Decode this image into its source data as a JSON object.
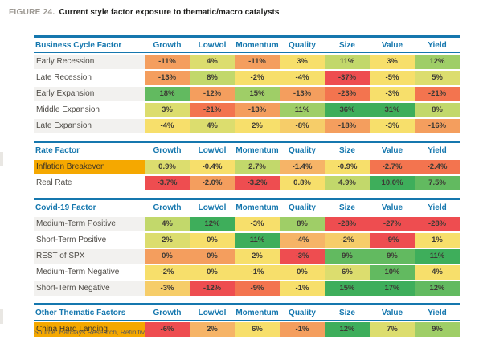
{
  "figure": {
    "label": "FIGURE 24.",
    "title": "Current style factor exposure to thematic/macro catalysts",
    "source": "Source: Barclays Research, Refinitiv"
  },
  "columns": [
    "Growth",
    "LowVol",
    "Momentum",
    "Quality",
    "Size",
    "Value",
    "Yield"
  ],
  "colors": {
    "accent_blue": "#1577AE",
    "highlight_gold": "#F5A800",
    "row_stripe": "#F2F1EF",
    "label_text": "#4D4A45",
    "cell_text": "#3D3A35",
    "figure_label_gray": "#9C9892",
    "source_text": "#5F5B55"
  },
  "palette": {
    "r": "#EE4D50",
    "or": "#F3744F",
    "o": "#F49E5E",
    "lo": "#F6B467",
    "yo": "#F6CD69",
    "y": "#F7DF6B",
    "yg": "#DCDD6E",
    "gy": "#C2D86B",
    "lg": "#9FCE67",
    "g": "#62BA60",
    "dg": "#3EAE5B"
  },
  "sections": [
    {
      "name": "Business Cycle Factor",
      "rows": [
        {
          "label": "Early Recession",
          "highlight": false,
          "values": [
            "-11%",
            "4%",
            "-11%",
            "3%",
            "11%",
            "3%",
            "12%"
          ],
          "levels": [
            "o",
            "yg",
            "o",
            "y",
            "gy",
            "y",
            "lg"
          ]
        },
        {
          "label": "Late Recession",
          "highlight": false,
          "values": [
            "-13%",
            "8%",
            "-2%",
            "-4%",
            "-37%",
            "-5%",
            "5%"
          ],
          "levels": [
            "o",
            "gy",
            "y",
            "y",
            "r",
            "y",
            "yg"
          ]
        },
        {
          "label": "Early Expansion",
          "highlight": false,
          "values": [
            "18%",
            "-12%",
            "15%",
            "-13%",
            "-23%",
            "-3%",
            "-21%"
          ],
          "levels": [
            "g",
            "o",
            "lg",
            "o",
            "or",
            "y",
            "or"
          ]
        },
        {
          "label": "Middle Expansion",
          "highlight": false,
          "values": [
            "3%",
            "-21%",
            "-13%",
            "11%",
            "36%",
            "31%",
            "8%"
          ],
          "levels": [
            "yg",
            "or",
            "o",
            "lg",
            "dg",
            "dg",
            "gy"
          ]
        },
        {
          "label": "Late Expansion",
          "highlight": false,
          "values": [
            "-4%",
            "4%",
            "2%",
            "-8%",
            "-18%",
            "-3%",
            "-16%"
          ],
          "levels": [
            "y",
            "yg",
            "y",
            "yo",
            "o",
            "y",
            "o"
          ]
        }
      ]
    },
    {
      "name": "Rate Factor",
      "rows": [
        {
          "label": "Inflation Breakeven",
          "highlight": true,
          "values": [
            "0.9%",
            "-0.4%",
            "2.7%",
            "-1.4%",
            "-0.9%",
            "-2.7%",
            "-2.4%"
          ],
          "levels": [
            "yg",
            "y",
            "gy",
            "lo",
            "y",
            "or",
            "or"
          ]
        },
        {
          "label": "Real Rate",
          "highlight": false,
          "values": [
            "-3.7%",
            "-2.0%",
            "-3.2%",
            "0.8%",
            "4.9%",
            "10.0%",
            "7.5%"
          ],
          "levels": [
            "r",
            "o",
            "r",
            "y",
            "gy",
            "dg",
            "g"
          ]
        }
      ]
    },
    {
      "name": "Covid-19 Factor",
      "rows": [
        {
          "label": "Medium-Term Positive",
          "highlight": false,
          "values": [
            "4%",
            "12%",
            "-3%",
            "8%",
            "-28%",
            "-27%",
            "-28%"
          ],
          "levels": [
            "gy",
            "dg",
            "y",
            "lg",
            "r",
            "r",
            "r"
          ]
        },
        {
          "label": "Short-Term Positive",
          "highlight": false,
          "values": [
            "2%",
            "0%",
            "11%",
            "-4%",
            "-2%",
            "-9%",
            "1%"
          ],
          "levels": [
            "yg",
            "y",
            "dg",
            "lo",
            "yo",
            "r",
            "y"
          ]
        },
        {
          "label": "REST of SPX",
          "highlight": false,
          "values": [
            "0%",
            "0%",
            "2%",
            "-3%",
            "9%",
            "9%",
            "11%"
          ],
          "levels": [
            "o",
            "o",
            "y",
            "r",
            "g",
            "g",
            "dg"
          ]
        },
        {
          "label": "Medium-Term Negative",
          "highlight": false,
          "values": [
            "-2%",
            "0%",
            "-1%",
            "0%",
            "6%",
            "10%",
            "4%"
          ],
          "levels": [
            "y",
            "y",
            "y",
            "y",
            "yg",
            "g",
            "y"
          ]
        },
        {
          "label": "Short-Term Negative",
          "highlight": false,
          "values": [
            "-3%",
            "-12%",
            "-9%",
            "-1%",
            "15%",
            "17%",
            "12%"
          ],
          "levels": [
            "yo",
            "r",
            "or",
            "y",
            "dg",
            "dg",
            "g"
          ]
        }
      ]
    },
    {
      "name": "Other Thematic Factors",
      "rows": [
        {
          "label": "China Hard Landing",
          "highlight": true,
          "values": [
            "-6%",
            "2%",
            "6%",
            "-1%",
            "12%",
            "7%",
            "9%"
          ],
          "levels": [
            "r",
            "lo",
            "y",
            "o",
            "dg",
            "yg",
            "lg"
          ]
        }
      ]
    }
  ],
  "chart_data": {
    "type": "heatmap",
    "title": "Current style factor exposure to thematic/macro catalysts",
    "units": "percent",
    "columns": [
      "Growth",
      "LowVol",
      "Momentum",
      "Quality",
      "Size",
      "Value",
      "Yield"
    ],
    "color_scale": "red = most negative, yellow = mid, green = most positive (scaled within each row)",
    "groups": [
      {
        "group": "Business Cycle Factor",
        "rows": [
          {
            "label": "Early Recession",
            "values": [
              -11,
              4,
              -11,
              3,
              11,
              3,
              12
            ]
          },
          {
            "label": "Late Recession",
            "values": [
              -13,
              8,
              -2,
              -4,
              -37,
              -5,
              5
            ]
          },
          {
            "label": "Early Expansion",
            "values": [
              18,
              -12,
              15,
              -13,
              -23,
              -3,
              -21
            ]
          },
          {
            "label": "Middle Expansion",
            "values": [
              3,
              -21,
              -13,
              11,
              36,
              31,
              8
            ]
          },
          {
            "label": "Late Expansion",
            "values": [
              -4,
              4,
              2,
              -8,
              -18,
              -3,
              -16
            ]
          }
        ]
      },
      {
        "group": "Rate Factor",
        "rows": [
          {
            "label": "Inflation Breakeven",
            "values": [
              0.9,
              -0.4,
              2.7,
              -1.4,
              -0.9,
              -2.7,
              -2.4
            ]
          },
          {
            "label": "Real Rate",
            "values": [
              -3.7,
              -2.0,
              -3.2,
              0.8,
              4.9,
              10.0,
              7.5
            ]
          }
        ]
      },
      {
        "group": "Covid-19 Factor",
        "rows": [
          {
            "label": "Medium-Term Positive",
            "values": [
              4,
              12,
              -3,
              8,
              -28,
              -27,
              -28
            ]
          },
          {
            "label": "Short-Term Positive",
            "values": [
              2,
              0,
              11,
              -4,
              -2,
              -9,
              1
            ]
          },
          {
            "label": "REST of SPX",
            "values": [
              0,
              0,
              2,
              -3,
              9,
              9,
              11
            ]
          },
          {
            "label": "Medium-Term Negative",
            "values": [
              -2,
              0,
              -1,
              0,
              6,
              10,
              4
            ]
          },
          {
            "label": "Short-Term Negative",
            "values": [
              -3,
              -12,
              -9,
              -1,
              15,
              17,
              12
            ]
          }
        ]
      },
      {
        "group": "Other Thematic Factors",
        "rows": [
          {
            "label": "China Hard Landing",
            "values": [
              -6,
              2,
              6,
              -1,
              12,
              7,
              9
            ]
          }
        ]
      }
    ]
  }
}
